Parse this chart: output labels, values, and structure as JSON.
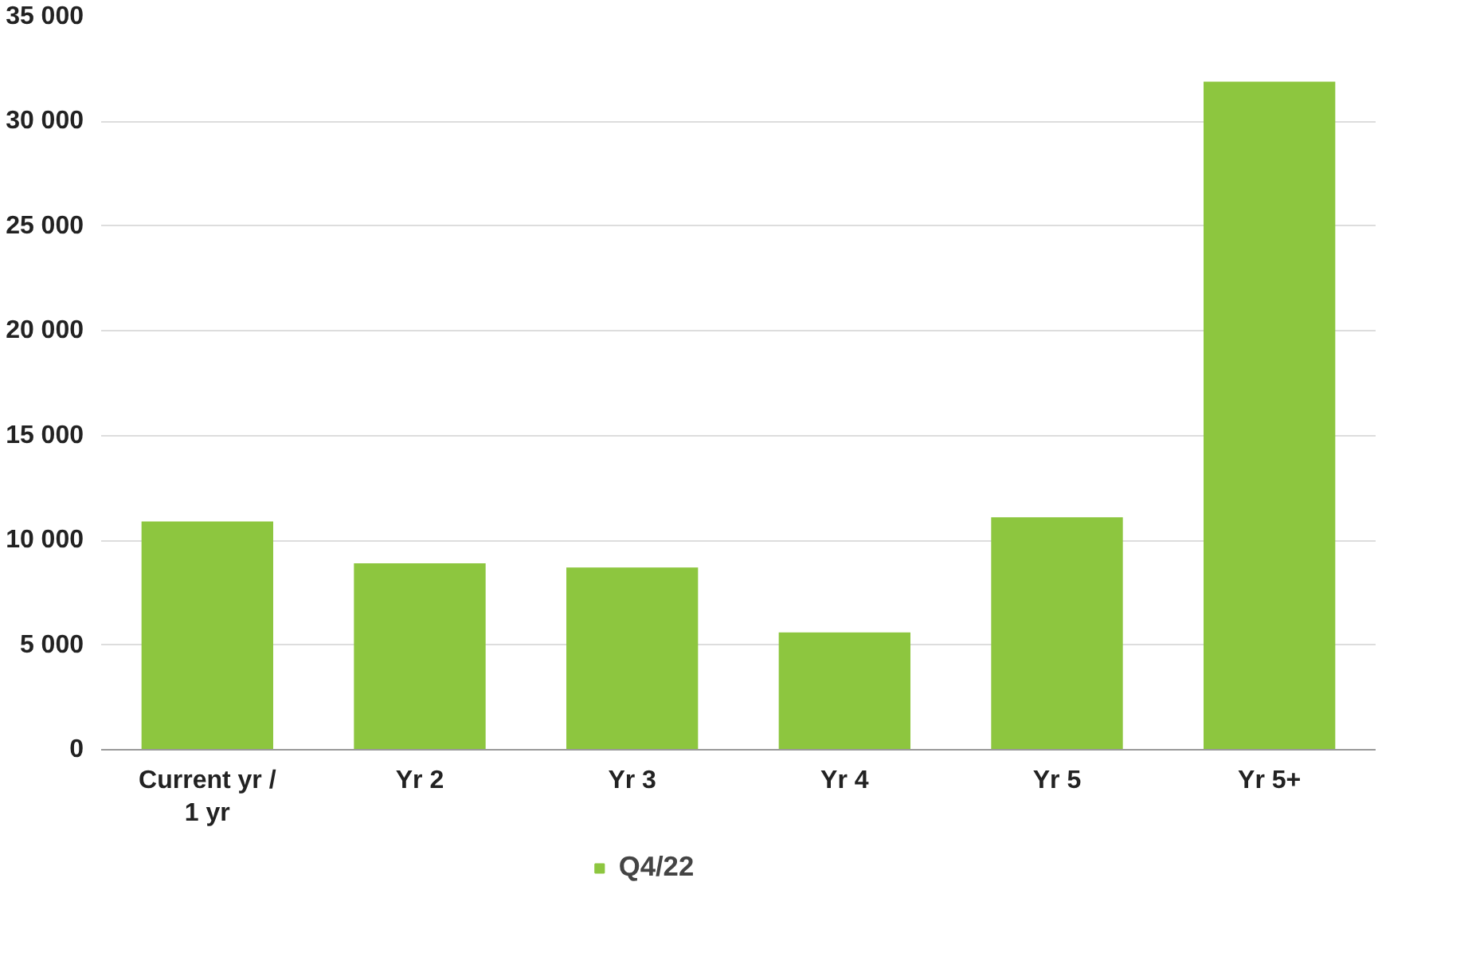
{
  "chart_data": {
    "type": "bar",
    "categories": [
      "Current yr / 1 yr",
      "Yr 2",
      "Yr 3",
      "Yr 4",
      "Yr 5",
      "Yr 5+"
    ],
    "series": [
      {
        "name": "Q4/22",
        "color": "#8dc63f",
        "values": [
          10900,
          8900,
          8700,
          5600,
          11100,
          31900
        ]
      }
    ],
    "ylim": [
      0,
      35000
    ],
    "yticks": [
      {
        "value": 0,
        "label": "0"
      },
      {
        "value": 5000,
        "label": "5 000"
      },
      {
        "value": 10000,
        "label": "10 000"
      },
      {
        "value": 15000,
        "label": "15 000"
      },
      {
        "value": 20000,
        "label": "20 000"
      },
      {
        "value": 25000,
        "label": "25 000"
      },
      {
        "value": 30000,
        "label": "30 000"
      },
      {
        "value": 35000,
        "label": "35 000"
      }
    ],
    "grid": "y",
    "legend": "bottom"
  }
}
